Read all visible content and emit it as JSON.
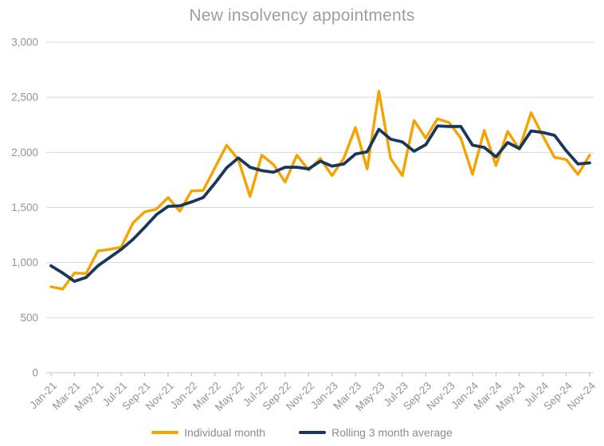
{
  "title": "New insolvency appointments",
  "legend": {
    "items": [
      {
        "label": "Individual month",
        "color": "#F5A300",
        "swatch": "line-swatch"
      },
      {
        "label": "Rolling 3 month average",
        "color": "#17375E",
        "swatch": "line-swatch"
      }
    ]
  },
  "colors": {
    "background": "#ffffff",
    "title_text": "#9e9e9e",
    "axis_label_text": "#949494",
    "legend_text": "#8c8c8c",
    "gridline": "#d9d9d9",
    "axis_line": "#c9c9c9",
    "tick_mark": "#b7b7b7",
    "series_individual": "#F5A300",
    "series_rolling": "#17375E"
  },
  "chart_data": {
    "type": "line",
    "title": "New insolvency appointments",
    "xlabel": "",
    "ylabel": "",
    "grid": "horizontal-only",
    "legend_position": "bottom-center",
    "ylim": [
      0,
      3000
    ],
    "y_ticks": [
      0,
      500,
      1000,
      1500,
      2000,
      2500,
      3000
    ],
    "y_tick_labels": [
      "0",
      "500",
      "1,000",
      "1,500",
      "2,000",
      "2,500",
      "3,000"
    ],
    "x_tick_every": 2,
    "x_tick_labels": [
      "Jan-21",
      "Mar-21",
      "May-21",
      "Jul-21",
      "Sep-21",
      "Nov-21",
      "Jan-22",
      "Mar-22",
      "May-22",
      "Jul-22",
      "Sep-22",
      "Nov-22",
      "Jan-23",
      "Mar-23",
      "May-23",
      "Jul-23",
      "Sep-23",
      "Nov-23",
      "Jan-24",
      "Mar-24",
      "May-24",
      "Jul-24",
      "Sep-24",
      "Nov-24"
    ],
    "x": [
      "Jan-21",
      "Feb-21",
      "Mar-21",
      "Apr-21",
      "May-21",
      "Jun-21",
      "Jul-21",
      "Aug-21",
      "Sep-21",
      "Oct-21",
      "Nov-21",
      "Dec-21",
      "Jan-22",
      "Feb-22",
      "Mar-22",
      "Apr-22",
      "May-22",
      "Jun-22",
      "Jul-22",
      "Aug-22",
      "Sep-22",
      "Oct-22",
      "Nov-22",
      "Dec-22",
      "Jan-23",
      "Feb-23",
      "Mar-23",
      "Apr-23",
      "May-23",
      "Jun-23",
      "Jul-23",
      "Aug-23",
      "Sep-23",
      "Oct-23",
      "Nov-23",
      "Dec-23",
      "Jan-24",
      "Feb-24",
      "Mar-24",
      "Apr-24",
      "May-24",
      "Jun-24",
      "Jul-24",
      "Aug-24",
      "Sep-24",
      "Oct-24",
      "Nov-24"
    ],
    "series": [
      {
        "name": "Individual month",
        "color": "#F5A300",
        "line_width": 3.4,
        "values": [
          780,
          760,
          905,
          900,
          1105,
          1120,
          1140,
          1360,
          1460,
          1485,
          1590,
          1465,
          1650,
          1655,
          1860,
          2065,
          1935,
          1600,
          1975,
          1890,
          1730,
          1975,
          1840,
          1945,
          1790,
          1945,
          2225,
          1850,
          2555,
          1945,
          1790,
          2290,
          2130,
          2305,
          2270,
          2130,
          1800,
          2200,
          1880,
          2190,
          2030,
          2360,
          2150,
          1955,
          1935,
          1800,
          1975
        ]
      },
      {
        "name": "Rolling 3 month average",
        "color": "#17375E",
        "line_width": 3.8,
        "values": [
          970,
          905,
          830,
          865,
          970,
          1045,
          1120,
          1210,
          1320,
          1435,
          1510,
          1515,
          1550,
          1590,
          1720,
          1860,
          1950,
          1865,
          1835,
          1820,
          1865,
          1865,
          1850,
          1920,
          1875,
          1895,
          1985,
          2005,
          2210,
          2120,
          2095,
          2010,
          2070,
          2240,
          2235,
          2235,
          2065,
          2045,
          1960,
          2090,
          2035,
          2195,
          2180,
          2155,
          2015,
          1895,
          1905
        ]
      }
    ]
  }
}
